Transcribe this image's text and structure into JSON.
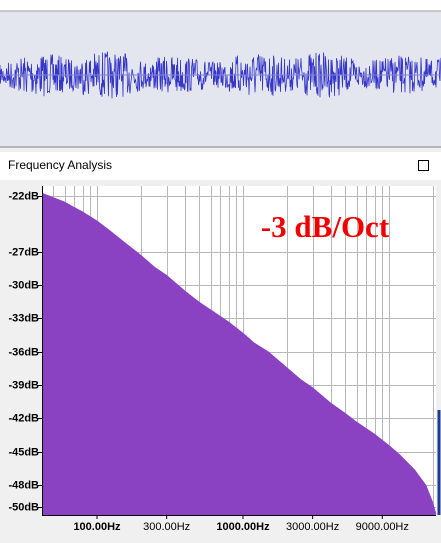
{
  "window": {
    "title": "Frequency Analysis"
  },
  "chart_data": {
    "type": "area",
    "annotation": "-3 dB/Oct",
    "color": "#8a42c2",
    "x": [
      42,
      50,
      60,
      70,
      80,
      100,
      120,
      150,
      200,
      250,
      300,
      400,
      500,
      600,
      800,
      1000,
      1200,
      1500,
      2000,
      2500,
      3000,
      4000,
      5000,
      6000,
      8000,
      10000,
      12000,
      15000,
      18000,
      20000,
      21000
    ],
    "values": [
      -21.7,
      -22.1,
      -22.5,
      -23.0,
      -23.4,
      -24.2,
      -25.0,
      -26.0,
      -27.3,
      -28.4,
      -29.1,
      -30.5,
      -31.5,
      -32.2,
      -33.3,
      -34.3,
      -35.2,
      -36.0,
      -37.4,
      -38.5,
      -39.2,
      -40.6,
      -41.5,
      -42.3,
      -43.4,
      -44.4,
      -45.3,
      -46.6,
      -48.0,
      -49.5,
      -50.5
    ],
    "xscale": "log",
    "xlim": [
      42,
      21000
    ],
    "ylim": [
      -50.7,
      -21.1
    ],
    "xticks": [
      {
        "value": 100,
        "label": "100.00Hz"
      },
      {
        "value": 300,
        "label": "300.00Hz"
      },
      {
        "value": 1000,
        "label": "1000.00Hz"
      },
      {
        "value": 3000,
        "label": "3000.00Hz"
      },
      {
        "value": 9000,
        "label": "9000.00Hz"
      }
    ],
    "xgrid": [
      50,
      60,
      70,
      80,
      90,
      100,
      200,
      300,
      400,
      500,
      600,
      700,
      800,
      900,
      1000,
      2000,
      3000,
      4000,
      5000,
      6000,
      7000,
      8000,
      9000,
      10000,
      20000
    ],
    "yticks": [
      {
        "value": -22,
        "label": "-22dB"
      },
      {
        "value": -27,
        "label": "-27dB"
      },
      {
        "value": -30,
        "label": "-30dB"
      },
      {
        "value": -33,
        "label": "-33dB"
      },
      {
        "value": -36,
        "label": "-36dB"
      },
      {
        "value": -39,
        "label": "-39dB"
      },
      {
        "value": -42,
        "label": "-42dB"
      },
      {
        "value": -45,
        "label": "-45dB"
      },
      {
        "value": -48,
        "label": "-48dB"
      },
      {
        "value": -50,
        "label": "-50dB"
      }
    ],
    "grid": true
  }
}
